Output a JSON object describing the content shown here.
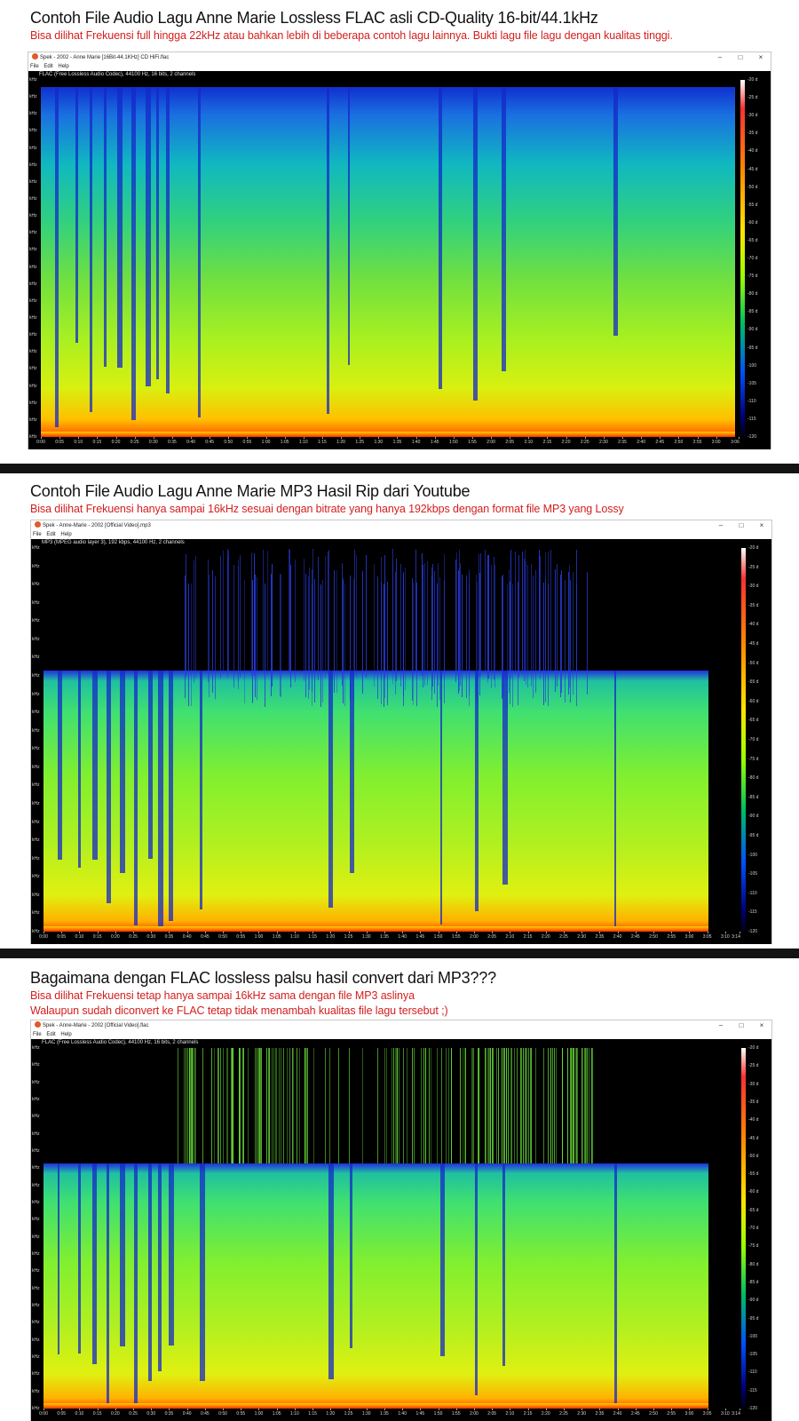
{
  "sections": [
    {
      "heading": "Contoh File Audio Lagu Anne Marie Lossless FLAC asli CD-Quality 16-bit/44.1kHz",
      "subtitles": [
        "Bisa dilihat Frekuensi full hingga 22kHz atau bahkan lebih di beberapa contoh lagu lainnya. Bukti lagu file lagu dengan kualitas tinggi."
      ],
      "window": {
        "title": "Spek - 2002 - Anne Marie [16Bit-44.1KHz] CD HiFi.flac",
        "menu": [
          "File",
          "Edit",
          "Help"
        ],
        "info": "FLAC (Free Lossless Audio Codec), 44100 Hz, 16 bits, 2 channels",
        "cutoff_fraction": 0.98,
        "time_ticks": [
          "0:00",
          "0:05",
          "0:10",
          "0:15",
          "0:20",
          "0:25",
          "0:30",
          "0:35",
          "0:40",
          "0:45",
          "0:50",
          "0:55",
          "1:00",
          "1:05",
          "1:10",
          "1:15",
          "1:20",
          "1:25",
          "1:30",
          "1:35",
          "1:40",
          "1:45",
          "1:50",
          "1:55",
          "2:00",
          "2:05",
          "2:10",
          "2:15",
          "2:20",
          "2:25",
          "2:30",
          "2:35",
          "2:40",
          "2:45",
          "2:50",
          "2:55",
          "3:00",
          "3:06"
        ],
        "duration_seconds": 186
      }
    },
    {
      "heading": "Contoh File Audio Lagu Anne Marie MP3 Hasil Rip dari Youtube",
      "subtitles": [
        "Bisa dilihat Frekuensi hanya sampai 16kHz sesuai dengan bitrate yang hanya 192kbps dengan format file MP3 yang Lossy"
      ],
      "window": {
        "title": "Spek - Anne-Marie - 2002 [Official Video].mp3",
        "menu": [
          "File",
          "Edit",
          "Help"
        ],
        "info": "MP3 (MPEG audio layer 3), 192 kbps, 44100 Hz, 2 channels",
        "cutoff_fraction": 0.68,
        "time_ticks": [
          "0:00",
          "0:05",
          "0:10",
          "0:15",
          "0:20",
          "0:25",
          "0:30",
          "0:35",
          "0:40",
          "0:45",
          "0:50",
          "0:55",
          "1:00",
          "1:05",
          "1:10",
          "1:15",
          "1:20",
          "1:25",
          "1:30",
          "1:35",
          "1:40",
          "1:45",
          "1:50",
          "1:55",
          "2:00",
          "2:05",
          "2:10",
          "2:15",
          "2:20",
          "2:25",
          "2:30",
          "2:35",
          "2:40",
          "2:45",
          "2:50",
          "2:55",
          "3:00",
          "3:05",
          "3:10",
          "3:14"
        ],
        "duration_seconds": 194
      }
    },
    {
      "heading": "Bagaimana dengan FLAC lossless palsu hasil convert dari MP3???",
      "subtitles": [
        "Bisa dilihat Frekuensi tetap hanya sampai 16kHz sama dengan file MP3 aslinya",
        "Walaupun sudah diconvert ke FLAC tetap tidak menambah kualitas file lagu tersebut ;)"
      ],
      "window": {
        "title": "Spek - Anne-Marie - 2002 [Official Video].flac",
        "menu": [
          "File",
          "Edit",
          "Help"
        ],
        "info": "FLAC (Free Lossless Audio Codec), 44100 Hz, 16 bits, 2 channels",
        "cutoff_fraction": 0.68,
        "time_ticks": [
          "0:00",
          "0:05",
          "0:10",
          "0:15",
          "0:20",
          "0:25",
          "0:30",
          "0:35",
          "0:40",
          "0:45",
          "0:50",
          "0:55",
          "1:00",
          "1:05",
          "1:10",
          "1:15",
          "1:20",
          "1:25",
          "1:30",
          "1:35",
          "1:40",
          "1:45",
          "1:50",
          "1:55",
          "2:00",
          "2:05",
          "2:10",
          "2:15",
          "2:20",
          "2:25",
          "2:30",
          "2:35",
          "2:40",
          "2:45",
          "2:50",
          "2:55",
          "3:00",
          "3:05",
          "3:10",
          "3:14"
        ],
        "duration_seconds": 194
      }
    }
  ],
  "khz_label": "kHz",
  "db_labels": [
    "-20 d",
    "-25 d",
    "-30 d",
    "-35 d",
    "-40 d",
    "-45 d",
    "-50 d",
    "-55 d",
    "-60 d",
    "-65 d",
    "-70 d",
    "-75 d",
    "-80 d",
    "-85 d",
    "-90 d",
    "-95 d",
    "-100",
    "-105",
    "-110",
    "-115",
    "-120"
  ],
  "window_controls": [
    "–",
    "□",
    "×"
  ],
  "colors": {
    "heading_red": "#d41e1e",
    "divider": "#141414"
  }
}
